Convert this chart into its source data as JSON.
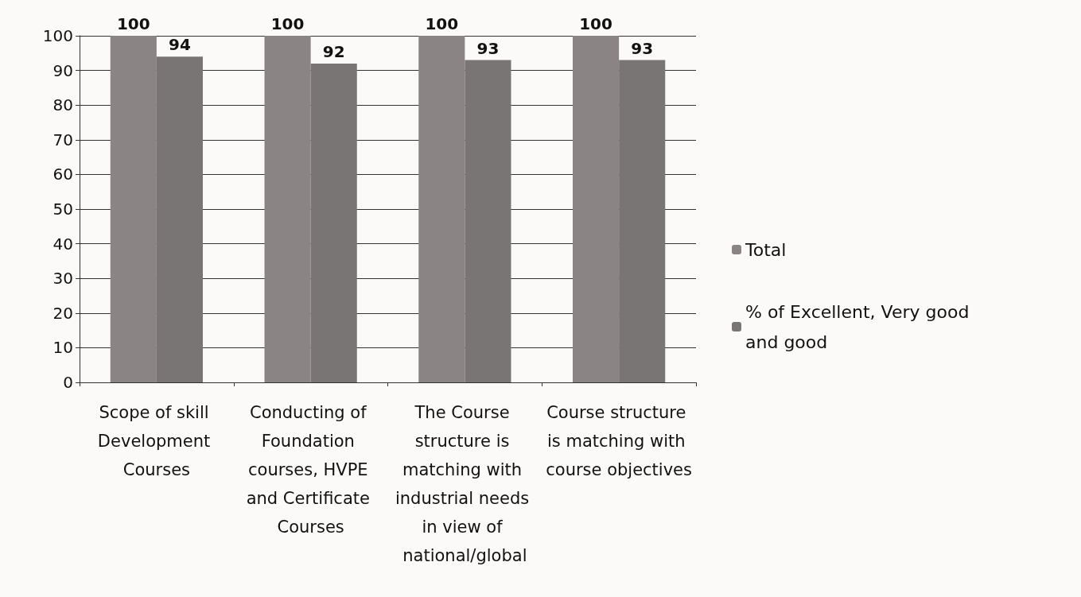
{
  "chart_data": {
    "type": "bar",
    "categories": [
      "Scope of skill Development Courses",
      "Conducting of Foundation courses, HVPE and Certificate Courses",
      "The Course structure is matching with industrial needs in view of national/global",
      "Course structure is matching with course objectives"
    ],
    "series": [
      {
        "name": "Total",
        "color": "#8a8484",
        "values": [
          100,
          100,
          100,
          100
        ]
      },
      {
        "name": "% of Excellent, Very good and good",
        "color": "#7a7575",
        "values": [
          94,
          92,
          93,
          93
        ]
      }
    ],
    "ylim": [
      0,
      100
    ],
    "yticks": [
      0,
      10,
      20,
      30,
      40,
      50,
      60,
      70,
      80,
      90,
      100
    ],
    "grid": "y",
    "legend": "right",
    "data_labels": true
  }
}
